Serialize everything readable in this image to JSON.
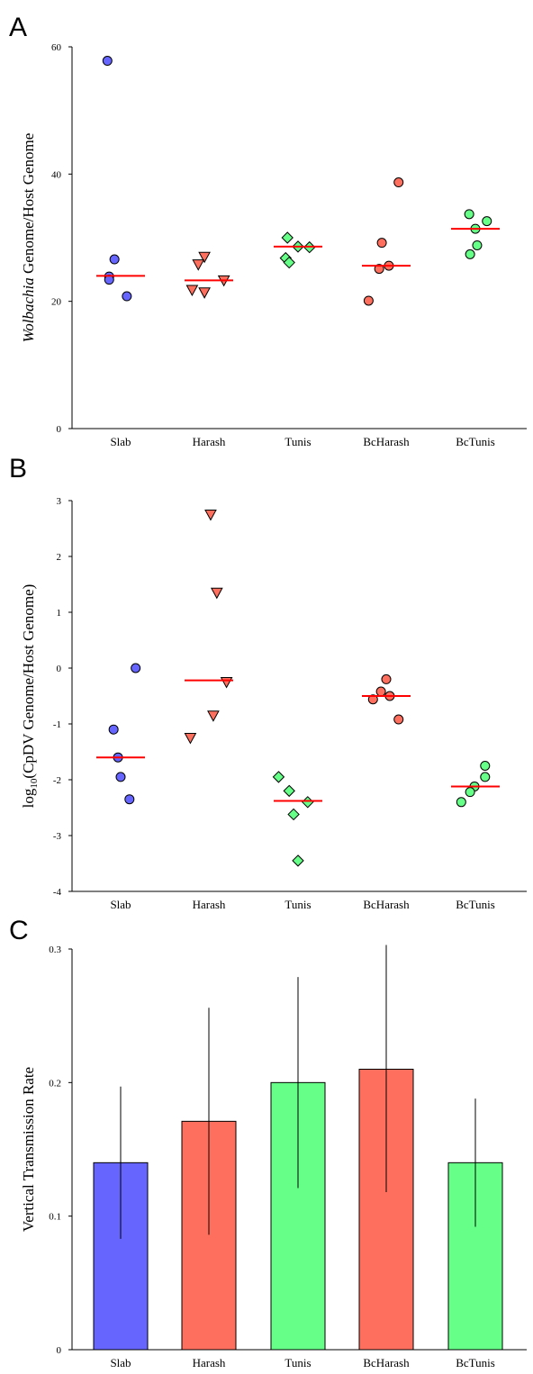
{
  "chart_data": [
    {
      "panel": "A",
      "type": "scatter",
      "categories": [
        "Slab",
        "Harash",
        "Tunis",
        "BcHarash",
        "BcTunis"
      ],
      "ylabel_italic": "Wolbachia",
      "ylabel_rest": " Genome/Host Genome",
      "ylim": [
        0,
        60
      ],
      "yticks": [
        0,
        20,
        40,
        60
      ],
      "series": [
        {
          "category": "Slab",
          "marker": "circle",
          "color": "#6666ff",
          "points": [
            [
              -0.15,
              57.8
            ],
            [
              -0.07,
              26.6
            ],
            [
              -0.13,
              23.9
            ],
            [
              -0.13,
              23.4
            ],
            [
              0.07,
              20.8
            ]
          ],
          "median": 24.0
        },
        {
          "category": "Harash",
          "marker": "triangle-down",
          "color": "#ff6f5e",
          "points": [
            [
              -0.05,
              27.0
            ],
            [
              -0.12,
              25.8
            ],
            [
              0.17,
              23.3
            ],
            [
              -0.19,
              21.8
            ],
            [
              -0.05,
              21.4
            ]
          ],
          "median": 23.3
        },
        {
          "category": "Tunis",
          "marker": "diamond",
          "color": "#66ff88",
          "points": [
            [
              -0.12,
              30.0
            ],
            [
              0.0,
              28.6
            ],
            [
              0.13,
              28.5
            ],
            [
              -0.14,
              26.8
            ],
            [
              -0.1,
              26.1
            ]
          ],
          "median": 28.6
        },
        {
          "category": "BcHarash",
          "marker": "circle",
          "color": "#ff6f5e",
          "points": [
            [
              0.14,
              38.7
            ],
            [
              -0.05,
              29.2
            ],
            [
              0.03,
              25.6
            ],
            [
              -0.08,
              25.1
            ],
            [
              -0.2,
              20.1
            ]
          ],
          "median": 25.6
        },
        {
          "category": "BcTunis",
          "marker": "circle",
          "color": "#66ff88",
          "points": [
            [
              -0.07,
              33.7
            ],
            [
              0.13,
              32.6
            ],
            [
              0.0,
              31.4
            ],
            [
              0.02,
              28.8
            ],
            [
              -0.06,
              27.4
            ]
          ],
          "median": 31.4
        }
      ]
    },
    {
      "panel": "B",
      "type": "scatter",
      "categories": [
        "Slab",
        "Harash",
        "Tunis",
        "BcHarash",
        "BcTunis"
      ],
      "ylabel_pre": "log",
      "ylabel_sub": "10",
      "ylabel_post": "(CpDV Genome/Host Genome)",
      "ylim": [
        -4,
        3
      ],
      "yticks": [
        -4,
        -3,
        -2,
        -1,
        0,
        1,
        2,
        3
      ],
      "series": [
        {
          "category": "Slab",
          "marker": "circle",
          "color": "#6666ff",
          "points": [
            [
              0.17,
              0.0
            ],
            [
              -0.08,
              -1.1
            ],
            [
              -0.03,
              -1.6
            ],
            [
              0.0,
              -1.95
            ],
            [
              0.1,
              -2.35
            ]
          ],
          "median": -1.6
        },
        {
          "category": "Harash",
          "marker": "triangle-down",
          "color": "#ff6f5e",
          "points": [
            [
              0.02,
              2.75
            ],
            [
              0.09,
              1.35
            ],
            [
              0.2,
              -0.25
            ],
            [
              0.05,
              -0.85
            ],
            [
              -0.21,
              -1.25
            ]
          ],
          "median": -0.22
        },
        {
          "category": "Tunis",
          "marker": "diamond",
          "color": "#66ff88",
          "points": [
            [
              -0.22,
              -1.95
            ],
            [
              -0.1,
              -2.2
            ],
            [
              0.11,
              -2.4
            ],
            [
              -0.05,
              -2.62
            ],
            [
              0.0,
              -3.45
            ]
          ],
          "median": -2.38
        },
        {
          "category": "BcHarash",
          "marker": "circle",
          "color": "#ff6f5e",
          "points": [
            [
              0.0,
              -0.2
            ],
            [
              -0.06,
              -0.42
            ],
            [
              0.04,
              -0.5
            ],
            [
              -0.15,
              -0.56
            ],
            [
              0.14,
              -0.92
            ]
          ],
          "median": -0.5
        },
        {
          "category": "BcTunis",
          "marker": "circle",
          "color": "#66ff88",
          "points": [
            [
              0.11,
              -1.75
            ],
            [
              0.11,
              -1.95
            ],
            [
              -0.01,
              -2.12
            ],
            [
              -0.06,
              -2.22
            ],
            [
              -0.16,
              -2.4
            ]
          ],
          "median": -2.12
        }
      ]
    },
    {
      "panel": "C",
      "type": "bar",
      "categories": [
        "Slab",
        "Harash",
        "Tunis",
        "BcHarash",
        "BcTunis"
      ],
      "ylabel": "Vertical Transmission Rate",
      "ylim": [
        0,
        0.3
      ],
      "yticks": [
        0,
        0.1,
        0.2,
        0.3
      ],
      "values": [
        0.14,
        0.171,
        0.2,
        0.21,
        0.14
      ],
      "error_low": [
        0.083,
        0.086,
        0.121,
        0.118,
        0.092
      ],
      "error_high": [
        0.197,
        0.256,
        0.279,
        0.303,
        0.188
      ],
      "colors": [
        "#6666ff",
        "#ff6f5e",
        "#66ff88",
        "#ff6f5e",
        "#66ff88"
      ]
    }
  ],
  "colors": {
    "median_line": "#ff0000",
    "blue": "#6666ff",
    "red": "#ff6f5e",
    "green": "#66ff88"
  }
}
